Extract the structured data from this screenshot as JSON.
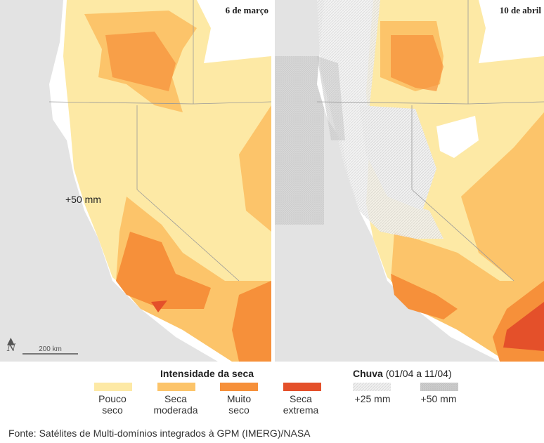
{
  "panels": [
    {
      "title": "6 de março",
      "annotation": "+50 mm"
    },
    {
      "title": "10 de abril"
    }
  ],
  "scale": {
    "label": "200 km",
    "north_icon": "north-arrow-icon"
  },
  "legend": {
    "drought_title": "Intensidade da seca",
    "drought_items": [
      {
        "line1": "Pouco",
        "line2": "seco",
        "color": "#fde9a5"
      },
      {
        "line1": "Seca",
        "line2": "moderada",
        "color": "#fcc46a"
      },
      {
        "line1": "Muito",
        "line2": "seco",
        "color": "#f6903a"
      },
      {
        "line1": "Seca",
        "line2": "extrema",
        "color": "#e4502a"
      }
    ],
    "rain_title_bold": "Chuva",
    "rain_title_rest": "(01/04 a 11/04)",
    "rain_items": [
      {
        "label": "+25 mm"
      },
      {
        "label": "+50 mm"
      }
    ]
  },
  "source": "Fonte: Satélites de Multi-domínios integrados à GPM (IMERG)/NASA"
}
